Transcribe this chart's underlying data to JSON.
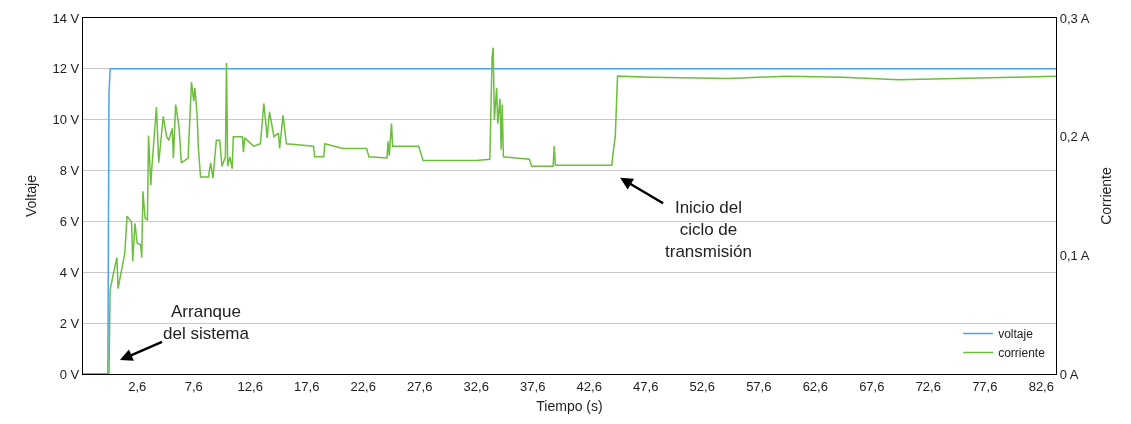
{
  "chart_data": {
    "type": "line",
    "xlabel": "Tiempo (s)",
    "ylabel": "Voltaje",
    "y2label": "Corriente",
    "xlim": [
      -2.2,
      83.9
    ],
    "xticks": [
      {
        "value": 2.6,
        "label": "2,6"
      },
      {
        "value": 7.6,
        "label": "7,6"
      },
      {
        "value": 12.6,
        "label": "12,6"
      },
      {
        "value": 17.6,
        "label": "17,6"
      },
      {
        "value": 22.6,
        "label": "22,6"
      },
      {
        "value": 27.6,
        "label": "27,6"
      },
      {
        "value": 32.6,
        "label": "32,6"
      },
      {
        "value": 37.6,
        "label": "37,6"
      },
      {
        "value": 42.6,
        "label": "42,6"
      },
      {
        "value": 47.6,
        "label": "47,6"
      },
      {
        "value": 52.6,
        "label": "52,6"
      },
      {
        "value": 57.6,
        "label": "57,6"
      },
      {
        "value": 62.6,
        "label": "62,6"
      },
      {
        "value": 67.6,
        "label": "67,6"
      },
      {
        "value": 72.6,
        "label": "72,6"
      },
      {
        "value": 77.6,
        "label": "77,6"
      },
      {
        "value": 82.6,
        "label": "82,6"
      }
    ],
    "ylim": [
      0,
      14
    ],
    "yticks": [
      {
        "value": 0,
        "label": "0 V"
      },
      {
        "value": 2,
        "label": "2 V"
      },
      {
        "value": 4,
        "label": "4 V"
      },
      {
        "value": 6,
        "label": "6 V"
      },
      {
        "value": 8,
        "label": "8 V"
      },
      {
        "value": 10,
        "label": "10 V"
      },
      {
        "value": 12,
        "label": "12 V"
      },
      {
        "value": 14,
        "label": "14 V"
      }
    ],
    "y2lim": [
      0,
      0.3
    ],
    "y2ticks": [
      {
        "value": 0,
        "label": "0 A"
      },
      {
        "value": 0.1,
        "label": "0,1 A"
      },
      {
        "value": 0.2,
        "label": "0,2 A"
      },
      {
        "value": 0.3,
        "label": "0,3 A"
      }
    ],
    "grid": "y",
    "legend": "bottom right",
    "marker": "none",
    "line_style": "solid",
    "series": [
      {
        "name": "voltaje",
        "color": "#4ba3f0",
        "x": [
          -2.2,
          0.0,
          0.1,
          0.2,
          83.9
        ],
        "values": [
          0,
          0,
          11,
          12,
          12
        ]
      },
      {
        "name": "corriente",
        "color": "#6cbf3c",
        "axis": "y2",
        "x": [
          -2.2,
          0.1,
          0.2,
          0.5,
          0.8,
          0.9,
          1.5,
          1.7,
          2.1,
          2.2,
          2.4,
          2.6,
          2.9,
          3.0,
          3.1,
          3.3,
          3.5,
          3.6,
          3.8,
          3.9,
          4.3,
          4.5,
          4.9,
          5.2,
          5.4,
          5.7,
          5.8,
          6.0,
          6.3,
          6.5,
          7.1,
          7.4,
          7.6,
          7.7,
          7.9,
          8.0,
          8.2,
          8.9,
          9.1,
          9.3,
          9.6,
          9.9,
          10.1,
          10.4,
          10.5,
          10.6,
          10.8,
          11.0,
          11.1,
          11.9,
          12.0,
          12.1,
          12.9,
          13.5,
          13.8,
          14.1,
          14.3,
          14.7,
          15.1,
          15.2,
          15.5,
          15.8,
          18.2,
          18.3,
          19.1,
          19.2,
          20.8,
          22.9,
          23.1,
          24.7,
          24.8,
          24.9,
          25.1,
          25.2,
          27.5,
          27.9,
          32.6,
          33.8,
          34.0,
          34.1,
          34.2,
          34.4,
          34.5,
          34.7,
          34.8,
          34.9,
          35.0,
          37.3,
          37.5,
          39.4,
          39.5,
          39.6,
          44.6,
          44.7,
          44.9,
          45.1,
          48.0,
          55.0,
          60.0,
          65.0,
          70.0,
          75.0,
          80.0,
          83.9
        ],
        "values": [
          0,
          0,
          0.071,
          0.085,
          0.098,
          0.072,
          0.102,
          0.133,
          0.128,
          0.095,
          0.127,
          0.11,
          0.109,
          0.098,
          0.154,
          0.131,
          0.13,
          0.201,
          0.159,
          0.175,
          0.225,
          0.178,
          0.217,
          0.2,
          0.197,
          0.207,
          0.182,
          0.227,
          0.208,
          0.178,
          0.182,
          0.246,
          0.23,
          0.241,
          0.218,
          0.192,
          0.166,
          0.166,
          0.178,
          0.165,
          0.197,
          0.197,
          0.175,
          0.183,
          0.262,
          0.175,
          0.183,
          0.173,
          0.2,
          0.2,
          0.187,
          0.199,
          0.192,
          0.194,
          0.228,
          0.199,
          0.221,
          0.2,
          0.203,
          0.19,
          0.218,
          0.194,
          0.192,
          0.183,
          0.183,
          0.194,
          0.19,
          0.19,
          0.183,
          0.182,
          0.196,
          0.184,
          0.211,
          0.192,
          0.192,
          0.18,
          0.18,
          0.181,
          0.267,
          0.275,
          0.214,
          0.241,
          0.211,
          0.232,
          0.189,
          0.227,
          0.183,
          0.181,
          0.175,
          0.175,
          0.192,
          0.176,
          0.176,
          0.186,
          0.2,
          0.251,
          0.25,
          0.249,
          0.251,
          0.25,
          0.248,
          0.249,
          0.25,
          0.251
        ]
      }
    ],
    "annotations": [
      "Arranque\ndel sistema",
      "Inicio del\nciclo de\ntransmisión"
    ]
  }
}
